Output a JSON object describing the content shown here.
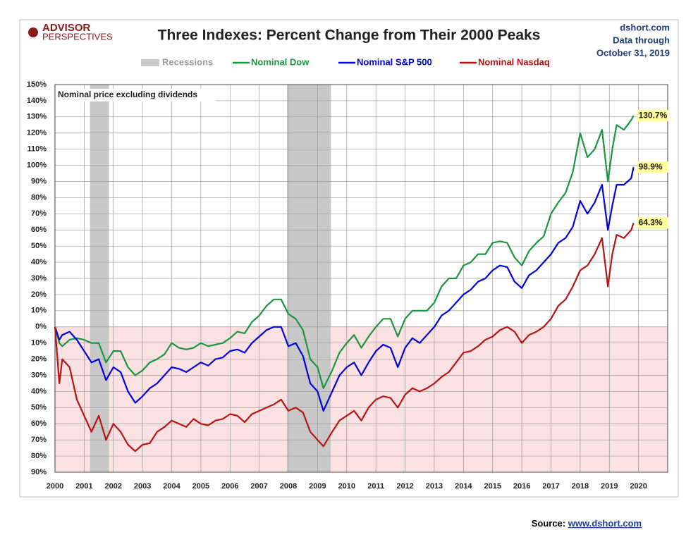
{
  "chart_data": {
    "type": "line",
    "title": "Three Indexes: Percent Change from Their 2000 Peaks",
    "logo": [
      "ADVISOR",
      "PERSPECTIVES"
    ],
    "source_site": "dshort.com",
    "data_through": "Data through",
    "date": "October 31, 2019",
    "note": "Nominal price excluding dividends",
    "source_label": "Source:",
    "source_url": "www.dshort.com",
    "recession_label": "Recessions",
    "recession_color": "#c8c8c8",
    "recessions": [
      [
        2001.2,
        2001.85
      ],
      [
        2007.95,
        2009.45
      ]
    ],
    "negative_fill": "#fbe1e1",
    "grid": true,
    "xlim": [
      2000,
      2021
    ],
    "xticks": [
      2000,
      2001,
      2002,
      2003,
      2004,
      2005,
      2006,
      2007,
      2008,
      2009,
      2010,
      2011,
      2012,
      2013,
      2014,
      2015,
      2016,
      2017,
      2018,
      2019,
      2020
    ],
    "ylim": [
      -90,
      150
    ],
    "yticks": [
      {
        "value": 150,
        "label": "150%"
      },
      {
        "value": 140,
        "label": "140%"
      },
      {
        "value": 130,
        "label": "130%"
      },
      {
        "value": 120,
        "label": "120%"
      },
      {
        "value": 110,
        "label": "110%"
      },
      {
        "value": 100,
        "label": "100%"
      },
      {
        "value": 90,
        "label": "90%"
      },
      {
        "value": 80,
        "label": "80%"
      },
      {
        "value": 70,
        "label": "70%"
      },
      {
        "value": 60,
        "label": "60%"
      },
      {
        "value": 50,
        "label": "50%"
      },
      {
        "value": 40,
        "label": "40%"
      },
      {
        "value": 30,
        "label": "30%"
      },
      {
        "value": 20,
        "label": "20%"
      },
      {
        "value": 10,
        "label": "10%"
      },
      {
        "value": 0,
        "label": "0%"
      },
      {
        "value": -10,
        "label": "10%"
      },
      {
        "value": -20,
        "label": "20%"
      },
      {
        "value": -30,
        "label": "30%"
      },
      {
        "value": -40,
        "label": "40%"
      },
      {
        "value": -50,
        "label": "50%"
      },
      {
        "value": -60,
        "label": "60%"
      },
      {
        "value": -70,
        "label": "70%"
      },
      {
        "value": -80,
        "label": "80%"
      },
      {
        "value": -90,
        "label": "90%"
      }
    ],
    "x": [
      2000,
      2000.15,
      2000.25,
      2000.5,
      2000.75,
      2001,
      2001.25,
      2001.5,
      2001.75,
      2002,
      2002.25,
      2002.5,
      2002.75,
      2003,
      2003.25,
      2003.5,
      2003.75,
      2004,
      2004.25,
      2004.5,
      2004.75,
      2005,
      2005.25,
      2005.5,
      2005.75,
      2006,
      2006.25,
      2006.5,
      2006.75,
      2007,
      2007.25,
      2007.5,
      2007.75,
      2008,
      2008.25,
      2008.5,
      2008.75,
      2009,
      2009.2,
      2009.5,
      2009.75,
      2010,
      2010.25,
      2010.5,
      2010.75,
      2011,
      2011.25,
      2011.5,
      2011.75,
      2012,
      2012.25,
      2012.5,
      2012.75,
      2013,
      2013.25,
      2013.5,
      2013.75,
      2014,
      2014.25,
      2014.5,
      2014.75,
      2015,
      2015.25,
      2015.5,
      2015.75,
      2016,
      2016.25,
      2016.5,
      2016.75,
      2017,
      2017.25,
      2017.5,
      2017.75,
      2018,
      2018.25,
      2018.5,
      2018.75,
      2018.95,
      2019.1,
      2019.25,
      2019.5,
      2019.75,
      2019.83
    ],
    "series": [
      {
        "name": "Nominal Dow",
        "color": "#1a9641",
        "end_label": "130.7%",
        "values": [
          0,
          -10,
          -12,
          -8,
          -7,
          -8,
          -10,
          -10,
          -22,
          -15,
          -15,
          -25,
          -30,
          -27,
          -22,
          -20,
          -17,
          -10,
          -13,
          -14,
          -13,
          -10,
          -12,
          -11,
          -10,
          -7,
          -3,
          -4,
          3,
          7,
          13,
          17,
          17,
          8,
          5,
          -2,
          -20,
          -25,
          -38,
          -27,
          -16,
          -10,
          -5,
          -13,
          -6,
          0,
          5,
          5,
          -6,
          5,
          10,
          10,
          10,
          15,
          25,
          30,
          30,
          38,
          40,
          45,
          45,
          52,
          53,
          52,
          43,
          38,
          47,
          52,
          56,
          70,
          77,
          83,
          96,
          120,
          105,
          110,
          122,
          90,
          110,
          125,
          122,
          128,
          130.7
        ]
      },
      {
        "name": "Nominal S&P 500",
        "color": "#0000e0",
        "end_label": "98.9%",
        "values": [
          0,
          -8,
          -5,
          -3,
          -8,
          -15,
          -22,
          -20,
          -33,
          -25,
          -28,
          -40,
          -47,
          -43,
          -38,
          -35,
          -30,
          -25,
          -26,
          -28,
          -25,
          -22,
          -24,
          -20,
          -19,
          -15,
          -14,
          -16,
          -10,
          -6,
          -2,
          0,
          0,
          -12,
          -10,
          -18,
          -35,
          -40,
          -52,
          -40,
          -30,
          -25,
          -22,
          -30,
          -22,
          -15,
          -11,
          -13,
          -25,
          -13,
          -7,
          -10,
          -5,
          0,
          7,
          10,
          15,
          20,
          23,
          28,
          30,
          35,
          38,
          37,
          28,
          24,
          32,
          35,
          40,
          45,
          52,
          55,
          62,
          78,
          70,
          77,
          88,
          60,
          75,
          88,
          88,
          92,
          98.9
        ]
      },
      {
        "name": "Nominal Nasdaq",
        "color": "#b81414",
        "end_label": "64.3%",
        "values": [
          0,
          -35,
          -20,
          -25,
          -45,
          -55,
          -65,
          -55,
          -70,
          -60,
          -65,
          -73,
          -77,
          -73,
          -72,
          -65,
          -62,
          -58,
          -60,
          -62,
          -57,
          -60,
          -61,
          -58,
          -57,
          -54,
          -55,
          -59,
          -54,
          -52,
          -50,
          -48,
          -45,
          -52,
          -50,
          -53,
          -65,
          -70,
          -74,
          -65,
          -58,
          -55,
          -52,
          -58,
          -50,
          -45,
          -43,
          -44,
          -50,
          -42,
          -38,
          -40,
          -38,
          -35,
          -31,
          -28,
          -22,
          -16,
          -15,
          -12,
          -8,
          -6,
          -2,
          0,
          -3,
          -10,
          -5,
          -3,
          0,
          5,
          13,
          17,
          25,
          35,
          38,
          45,
          55,
          25,
          45,
          57,
          55,
          60,
          64.3
        ]
      }
    ]
  }
}
